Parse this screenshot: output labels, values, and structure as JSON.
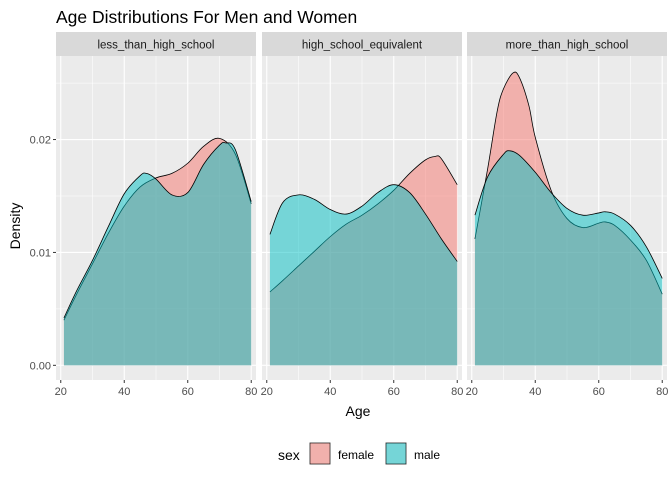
{
  "chart_data": {
    "type": "area",
    "title": "Age Distributions For Men and Women",
    "xlabel": "Age",
    "ylabel": "Density",
    "xlim": [
      18.5,
      81.5
    ],
    "ylim": [
      -0.0013,
      0.0274
    ],
    "x_ticks": [
      20,
      40,
      60,
      80
    ],
    "x_tick_labels": [
      "20",
      "40",
      "60",
      "80"
    ],
    "y_ticks": [
      0,
      0.01,
      0.02
    ],
    "y_tick_labels": [
      "0.00",
      "0.01",
      "0.02"
    ],
    "grid": true,
    "legend": {
      "title": "sex",
      "position": "bottom",
      "entries": [
        {
          "name": "female",
          "color": "#F8766D"
        },
        {
          "name": "male",
          "color": "#00BFC4"
        }
      ]
    },
    "panels": [
      {
        "label": "less_than_high_school",
        "series": [
          {
            "name": "female",
            "color": "#F8766D",
            "x": [
              21,
              25,
              30,
              35,
              40,
              45,
              50,
              55,
              60,
              65,
              70,
              75,
              80
            ],
            "y": [
              0.004,
              0.0063,
              0.009,
              0.0117,
              0.0141,
              0.0158,
              0.0166,
              0.017,
              0.0179,
              0.0194,
              0.0201,
              0.0187,
              0.0143
            ]
          },
          {
            "name": "male",
            "color": "#00BFC4",
            "x": [
              21,
              25,
              30,
              35,
              40,
              45,
              47,
              50,
              55,
              60,
              65,
              70,
              72,
              75,
              80
            ],
            "y": [
              0.0042,
              0.0066,
              0.0093,
              0.0123,
              0.0152,
              0.0168,
              0.017,
              0.0165,
              0.0151,
              0.0153,
              0.0178,
              0.0195,
              0.0197,
              0.0191,
              0.0145
            ]
          }
        ]
      },
      {
        "label": "high_school_equivalent",
        "series": [
          {
            "name": "female",
            "color": "#F8766D",
            "x": [
              21,
              25,
              30,
              35,
              40,
              45,
              50,
              55,
              60,
              65,
              70,
              73,
              75,
              80
            ],
            "y": [
              0.0065,
              0.0075,
              0.0088,
              0.0101,
              0.0114,
              0.0125,
              0.0133,
              0.0143,
              0.0155,
              0.017,
              0.0182,
              0.0185,
              0.0183,
              0.016
            ]
          },
          {
            "name": "male",
            "color": "#00BFC4",
            "x": [
              21,
              25,
              30,
              35,
              40,
              45,
              50,
              55,
              60,
              65,
              70,
              75,
              80
            ],
            "y": [
              0.0116,
              0.0144,
              0.0151,
              0.0147,
              0.0138,
              0.0134,
              0.0141,
              0.0153,
              0.016,
              0.0153,
              0.0134,
              0.0112,
              0.0092
            ]
          }
        ]
      },
      {
        "label": "more_than_high_school",
        "series": [
          {
            "name": "female",
            "color": "#F8766D",
            "x": [
              21,
              25,
              28,
              30,
              33,
              35,
              38,
              40,
              45,
              50,
              55,
              60,
              62,
              65,
              70,
              75,
              80
            ],
            "y": [
              0.0112,
              0.0174,
              0.0225,
              0.0245,
              0.0259,
              0.0255,
              0.023,
              0.0202,
              0.0155,
              0.013,
              0.0122,
              0.0126,
              0.0127,
              0.0124,
              0.0111,
              0.0093,
              0.0063
            ]
          },
          {
            "name": "male",
            "color": "#00BFC4",
            "x": [
              21,
              25,
              30,
              32,
              35,
              40,
              45,
              50,
              55,
              60,
              62,
              65,
              70,
              75,
              80
            ],
            "y": [
              0.0133,
              0.0167,
              0.0187,
              0.019,
              0.0186,
              0.0171,
              0.0153,
              0.0139,
              0.0133,
              0.0135,
              0.0136,
              0.0134,
              0.0124,
              0.0105,
              0.0077
            ]
          }
        ]
      }
    ]
  }
}
